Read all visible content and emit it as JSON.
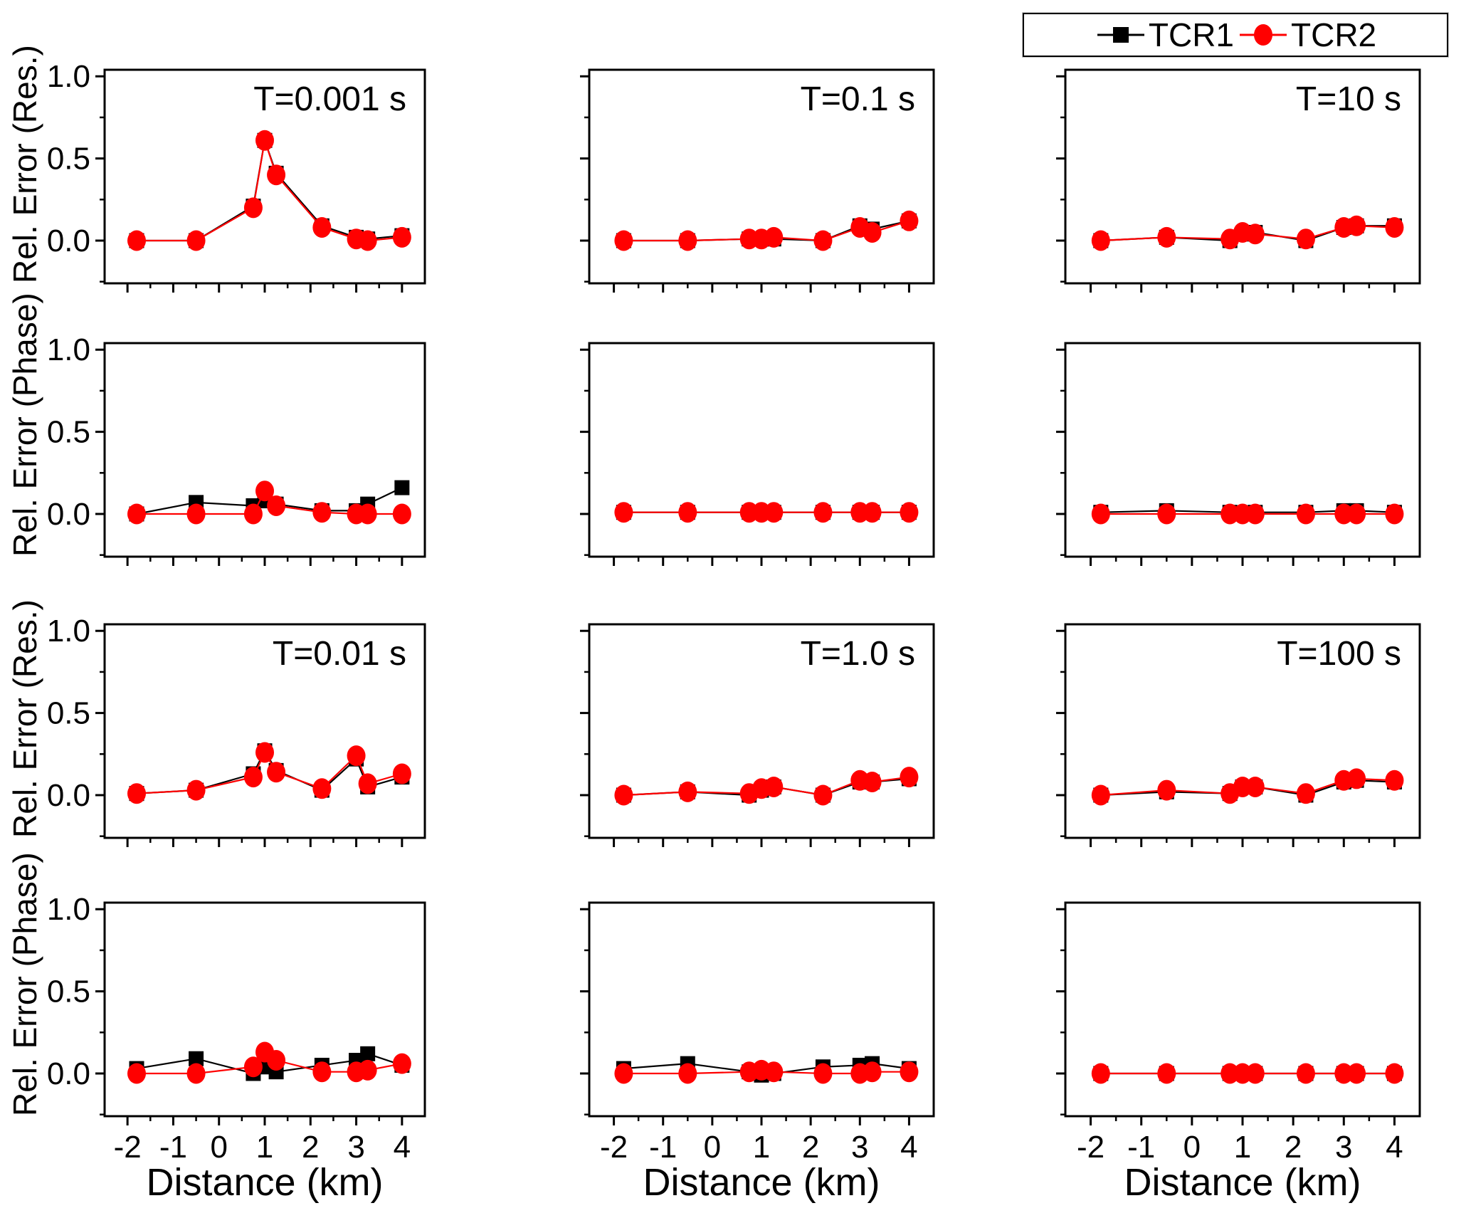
{
  "figure": {
    "background": "#ffffff"
  },
  "legend": {
    "items": [
      {
        "label": "TCR1",
        "marker": "square",
        "color": "#000000"
      },
      {
        "label": "TCR2",
        "marker": "circle",
        "color": "#ff0000"
      }
    ]
  },
  "axes": {
    "x": {
      "label": "Distance (km)",
      "range": [
        -2.5,
        4.5
      ],
      "ticks": [
        -2,
        -1,
        0,
        1,
        2,
        3,
        4
      ],
      "tick_labels": [
        "-2",
        "-1",
        "0",
        "1",
        "2",
        "3",
        "4"
      ],
      "minor_ticks": [
        -1.5,
        -0.5,
        0.5,
        1.5,
        2.5,
        3.5
      ]
    },
    "y": {
      "range": [
        -0.26,
        1.04
      ],
      "ticks": [
        1.0,
        0.5,
        0.0
      ],
      "tick_labels": [
        "1.0",
        "0.5",
        "0.0"
      ],
      "minor_ticks": [
        0.75,
        0.25,
        -0.25
      ],
      "row_labels": [
        "Rel. Error (Res.)",
        "Rel. Error (Phase)",
        "Rel. Error (Res.)",
        "Rel. Error (Phase)"
      ]
    }
  },
  "chart_data": [
    {
      "id": "res-t0.001",
      "type": "line",
      "row": 0,
      "col": 0,
      "title": "T=0.001 s",
      "ylabel": "Rel. Error (Res.)",
      "xlabel": "Distance (km)",
      "x": [
        -1.8,
        -0.5,
        0.75,
        1.0,
        1.25,
        2.25,
        3.0,
        3.25,
        4.0
      ],
      "series": [
        {
          "name": "TCR1",
          "values": [
            0.0,
            0.0,
            0.21,
            0.61,
            0.41,
            0.09,
            0.02,
            0.01,
            0.03
          ]
        },
        {
          "name": "TCR2",
          "values": [
            0.0,
            0.0,
            0.2,
            0.61,
            0.4,
            0.08,
            0.01,
            0.0,
            0.02
          ]
        }
      ]
    },
    {
      "id": "res-t0.1",
      "type": "line",
      "row": 0,
      "col": 1,
      "title": "T=0.1 s",
      "ylabel": "Rel. Error (Res.)",
      "xlabel": "Distance (km)",
      "x": [
        -1.8,
        -0.5,
        0.75,
        1.0,
        1.25,
        2.25,
        3.0,
        3.25,
        4.0
      ],
      "series": [
        {
          "name": "TCR1",
          "values": [
            0.0,
            0.0,
            0.01,
            0.01,
            0.01,
            0.0,
            0.09,
            0.07,
            0.12
          ]
        },
        {
          "name": "TCR2",
          "values": [
            0.0,
            0.0,
            0.01,
            0.01,
            0.02,
            0.0,
            0.08,
            0.05,
            0.12
          ]
        }
      ]
    },
    {
      "id": "res-t10",
      "type": "line",
      "row": 0,
      "col": 2,
      "title": "T=10 s",
      "ylabel": "Rel. Error (Res.)",
      "xlabel": "Distance (km)",
      "x": [
        -1.8,
        -0.5,
        0.75,
        1.0,
        1.25,
        2.25,
        3.0,
        3.25,
        4.0
      ],
      "series": [
        {
          "name": "TCR1",
          "values": [
            0.0,
            0.02,
            0.0,
            0.04,
            0.05,
            0.0,
            0.08,
            0.09,
            0.09
          ]
        },
        {
          "name": "TCR2",
          "values": [
            0.0,
            0.02,
            0.01,
            0.05,
            0.04,
            0.01,
            0.08,
            0.09,
            0.08
          ]
        }
      ]
    },
    {
      "id": "phase-t0.001",
      "type": "line",
      "row": 1,
      "col": 0,
      "title": "",
      "ylabel": "Rel. Error (Phase)",
      "xlabel": "Distance (km)",
      "x": [
        -1.8,
        -0.5,
        0.75,
        1.0,
        1.25,
        2.25,
        3.0,
        3.25,
        4.0
      ],
      "series": [
        {
          "name": "TCR1",
          "values": [
            0.0,
            0.07,
            0.05,
            0.08,
            0.06,
            0.02,
            0.02,
            0.06,
            0.16
          ]
        },
        {
          "name": "TCR2",
          "values": [
            0.0,
            0.0,
            0.0,
            0.14,
            0.05,
            0.01,
            0.0,
            0.0,
            0.0
          ]
        }
      ]
    },
    {
      "id": "phase-t0.1",
      "type": "line",
      "row": 1,
      "col": 1,
      "title": "",
      "ylabel": "Rel. Error (Phase)",
      "xlabel": "Distance (km)",
      "x": [
        -1.8,
        -0.5,
        0.75,
        1.0,
        1.25,
        2.25,
        3.0,
        3.25,
        4.0
      ],
      "series": [
        {
          "name": "TCR1",
          "values": [
            0.01,
            0.01,
            0.01,
            0.01,
            0.01,
            0.01,
            0.01,
            0.01,
            0.01
          ]
        },
        {
          "name": "TCR2",
          "values": [
            0.01,
            0.01,
            0.01,
            0.01,
            0.01,
            0.01,
            0.01,
            0.01,
            0.01
          ]
        }
      ]
    },
    {
      "id": "phase-t10",
      "type": "line",
      "row": 1,
      "col": 2,
      "title": "",
      "ylabel": "Rel. Error (Phase)",
      "xlabel": "Distance (km)",
      "x": [
        -1.8,
        -0.5,
        0.75,
        1.0,
        1.25,
        2.25,
        3.0,
        3.25,
        4.0
      ],
      "series": [
        {
          "name": "TCR1",
          "values": [
            0.01,
            0.02,
            0.01,
            0.0,
            0.01,
            0.01,
            0.02,
            0.02,
            0.01
          ]
        },
        {
          "name": "TCR2",
          "values": [
            0.0,
            0.0,
            0.0,
            0.0,
            0.0,
            0.0,
            0.0,
            0.0,
            0.0
          ]
        }
      ]
    },
    {
      "id": "res-t0.01",
      "type": "line",
      "row": 2,
      "col": 0,
      "title": "T=0.01 s",
      "ylabel": "Rel. Error (Res.)",
      "xlabel": "Distance (km)",
      "x": [
        -1.8,
        -0.5,
        0.75,
        1.0,
        1.25,
        2.25,
        3.0,
        3.25,
        4.0
      ],
      "series": [
        {
          "name": "TCR1",
          "values": [
            0.01,
            0.03,
            0.13,
            0.27,
            0.15,
            0.03,
            0.22,
            0.05,
            0.11
          ]
        },
        {
          "name": "TCR2",
          "values": [
            0.01,
            0.03,
            0.11,
            0.26,
            0.14,
            0.04,
            0.24,
            0.07,
            0.13
          ]
        }
      ]
    },
    {
      "id": "res-t1.0",
      "type": "line",
      "row": 2,
      "col": 1,
      "title": "T=1.0 s",
      "ylabel": "Rel. Error (Res.)",
      "xlabel": "Distance (km)",
      "x": [
        -1.8,
        -0.5,
        0.75,
        1.0,
        1.25,
        2.25,
        3.0,
        3.25,
        4.0
      ],
      "series": [
        {
          "name": "TCR1",
          "values": [
            0.0,
            0.02,
            0.0,
            0.03,
            0.05,
            0.0,
            0.08,
            0.08,
            0.1
          ]
        },
        {
          "name": "TCR2",
          "values": [
            0.0,
            0.02,
            0.01,
            0.04,
            0.05,
            0.0,
            0.09,
            0.08,
            0.11
          ]
        }
      ]
    },
    {
      "id": "res-t100",
      "type": "line",
      "row": 2,
      "col": 2,
      "title": "T=100 s",
      "ylabel": "Rel. Error (Res.)",
      "xlabel": "Distance (km)",
      "x": [
        -1.8,
        -0.5,
        0.75,
        1.0,
        1.25,
        2.25,
        3.0,
        3.25,
        4.0
      ],
      "series": [
        {
          "name": "TCR1",
          "values": [
            0.0,
            0.02,
            0.01,
            0.05,
            0.05,
            0.0,
            0.08,
            0.09,
            0.08
          ]
        },
        {
          "name": "TCR2",
          "values": [
            0.0,
            0.03,
            0.01,
            0.05,
            0.05,
            0.01,
            0.09,
            0.1,
            0.09
          ]
        }
      ]
    },
    {
      "id": "phase-t0.01",
      "type": "line",
      "row": 3,
      "col": 0,
      "title": "",
      "ylabel": "Rel. Error (Phase)",
      "xlabel": "Distance (km)",
      "x": [
        -1.8,
        -0.5,
        0.75,
        1.0,
        1.25,
        2.25,
        3.0,
        3.25,
        4.0
      ],
      "series": [
        {
          "name": "TCR1",
          "values": [
            0.03,
            0.09,
            0.0,
            0.04,
            0.01,
            0.05,
            0.08,
            0.12,
            0.05
          ]
        },
        {
          "name": "TCR2",
          "values": [
            0.0,
            0.0,
            0.04,
            0.13,
            0.08,
            0.01,
            0.01,
            0.02,
            0.06
          ]
        }
      ]
    },
    {
      "id": "phase-t1.0",
      "type": "line",
      "row": 3,
      "col": 1,
      "title": "",
      "ylabel": "Rel. Error (Phase)",
      "xlabel": "Distance (km)",
      "x": [
        -1.8,
        -0.5,
        0.75,
        1.0,
        1.25,
        2.25,
        3.0,
        3.25,
        4.0
      ],
      "series": [
        {
          "name": "TCR1",
          "values": [
            0.03,
            0.06,
            0.01,
            -0.01,
            0.0,
            0.04,
            0.05,
            0.06,
            0.03
          ]
        },
        {
          "name": "TCR2",
          "values": [
            0.0,
            0.0,
            0.01,
            0.02,
            0.01,
            0.0,
            0.0,
            0.01,
            0.01
          ]
        }
      ]
    },
    {
      "id": "phase-t100",
      "type": "line",
      "row": 3,
      "col": 2,
      "title": "",
      "ylabel": "Rel. Error (Phase)",
      "xlabel": "Distance (km)",
      "x": [
        -1.8,
        -0.5,
        0.75,
        1.0,
        1.25,
        2.25,
        3.0,
        3.25,
        4.0
      ],
      "series": [
        {
          "name": "TCR1",
          "values": [
            0.0,
            0.0,
            0.0,
            0.0,
            0.0,
            0.0,
            0.0,
            0.0,
            0.0
          ]
        },
        {
          "name": "TCR2",
          "values": [
            0.0,
            0.0,
            0.0,
            0.0,
            0.0,
            0.0,
            0.0,
            0.0,
            0.0
          ]
        }
      ]
    }
  ]
}
